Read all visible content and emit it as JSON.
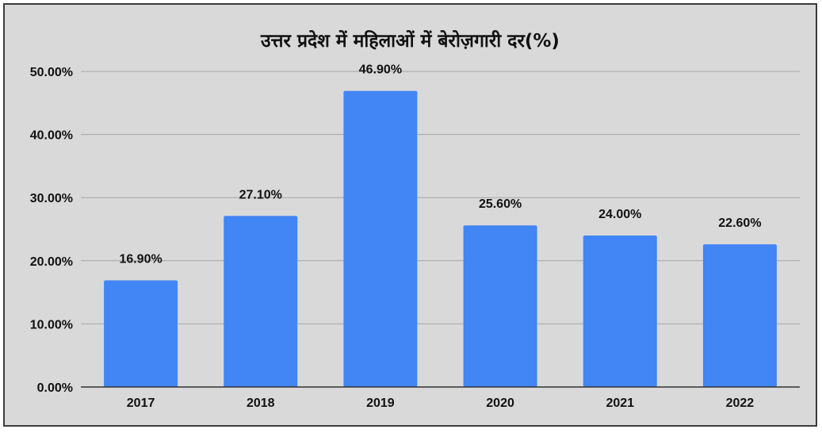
{
  "chart_data": {
    "type": "bar",
    "title": "उत्तर प्रदेश में महिलाओं में बेरोज़गारी दर(%)",
    "categories": [
      "2017",
      "2018",
      "2019",
      "2020",
      "2021",
      "2022"
    ],
    "values": [
      16.9,
      27.1,
      46.9,
      25.6,
      24.0,
      22.6
    ],
    "data_labels": [
      "16.90%",
      "27.10%",
      "46.90%",
      "25.60%",
      "24.00%",
      "22.60%"
    ],
    "ylim": [
      0,
      50
    ],
    "yticks": [
      0,
      10,
      20,
      30,
      40,
      50
    ],
    "ytick_labels": [
      "0.00%",
      "10.00%",
      "20.00%",
      "30.00%",
      "40.00%",
      "50.00%"
    ],
    "xlabel": "",
    "ylabel": "",
    "grid": true,
    "legend": "none",
    "bar_color": "#4285f4",
    "background_color": "#d9d9d9"
  }
}
